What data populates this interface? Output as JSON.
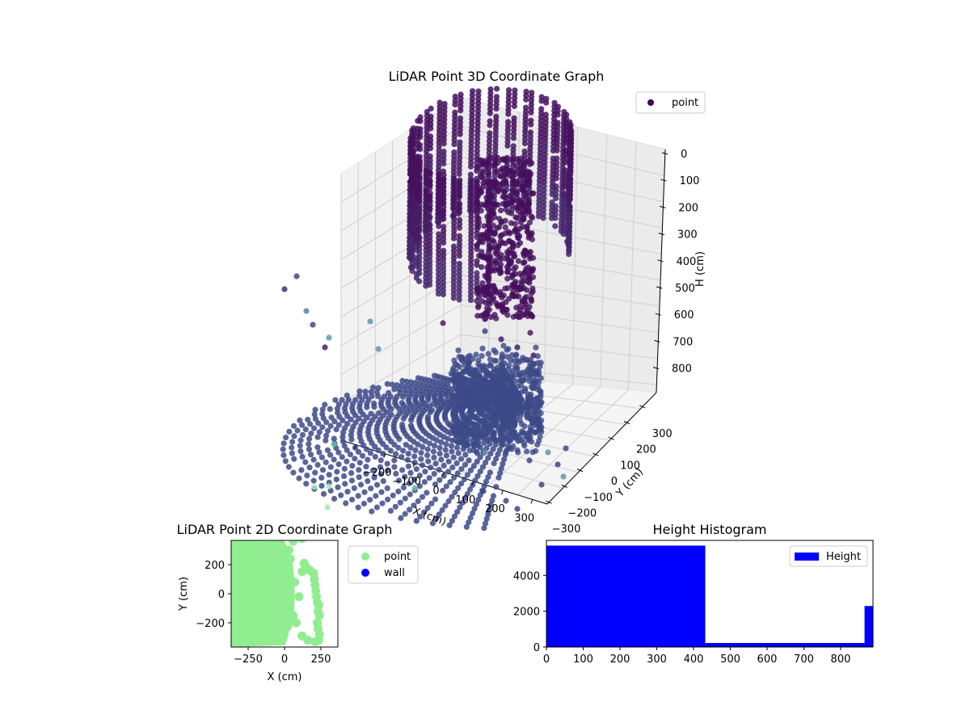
{
  "chart_data": [
    {
      "type": "scatter3d",
      "title": "LiDAR Point 3D Coordinate Graph",
      "xlabel": "X (cm)",
      "ylabel": "Y (cm)",
      "zlabel": "H (cm)",
      "x_ticks": [
        "−300",
        "−200",
        "−100",
        "0",
        "100",
        "200",
        "300"
      ],
      "y_ticks": [
        "−300",
        "−200",
        "−100",
        "0",
        "100",
        "200",
        "300"
      ],
      "z_ticks": [
        "0",
        "100",
        "200",
        "300",
        "400",
        "500",
        "600",
        "700",
        "800"
      ],
      "z_inverted": true,
      "xlim": [
        -350,
        350
      ],
      "ylim": [
        -350,
        350
      ],
      "zlim": [
        0,
        880
      ],
      "colormap": "viridis",
      "legend": [
        {
          "label": "point",
          "color": "#440154",
          "marker": "circle"
        }
      ],
      "legend_position": "upper right",
      "grid": true,
      "clusters": [
        {
          "name": "upper wall ring",
          "h_range": [
            0,
            430
          ],
          "shape": "partial cylinder",
          "color": "#46195f"
        },
        {
          "name": "floor fan",
          "h_range": [
            860,
            888
          ],
          "shape": "fan/disc",
          "color": "#3e4a89"
        },
        {
          "name": "scattered mid points",
          "h_range": [
            430,
            860
          ],
          "count_approx": 225
        }
      ]
    },
    {
      "type": "scatter",
      "title": "LiDAR Point 2D Coordinate Graph",
      "xlabel": "X (cm)",
      "ylabel": "Y (cm)",
      "x_ticks": [
        "−250",
        "0",
        "250"
      ],
      "y_ticks": [
        "−200",
        "0",
        "200"
      ],
      "xlim": [
        -366,
        366
      ],
      "ylim": [
        -366,
        366
      ],
      "legend": [
        {
          "label": "point",
          "color": "#90ee90"
        },
        {
          "label": "wall",
          "color": "#0000ff"
        }
      ],
      "legend_position": "outside upper right",
      "grid": false
    },
    {
      "type": "bar",
      "subtype": "histogram",
      "title": "Height Histogram",
      "xlabel": "",
      "ylabel": "",
      "bins": [
        {
          "start": 0,
          "end": 432,
          "count": 5660
        },
        {
          "start": 432,
          "end": 865,
          "count": 225
        },
        {
          "start": 865,
          "end": 888,
          "count": 2290
        }
      ],
      "x_ticks": [
        "0",
        "100",
        "200",
        "300",
        "400",
        "500",
        "600",
        "700",
        "800"
      ],
      "y_ticks": [
        "0",
        "2000",
        "4000"
      ],
      "xlim": [
        0,
        888
      ],
      "ylim": [
        0,
        5950
      ],
      "color": "#0000ff",
      "legend": [
        {
          "label": "Height",
          "color": "#0000ff"
        }
      ],
      "legend_position": "upper right",
      "grid": false
    }
  ]
}
